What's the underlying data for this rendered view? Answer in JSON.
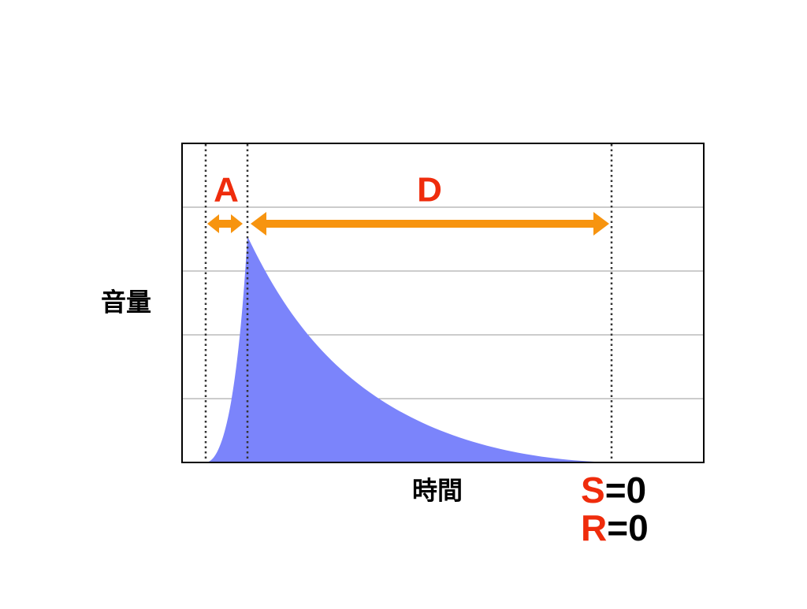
{
  "labels": {
    "attack": "A",
    "decay": "D",
    "y_axis": "音量",
    "x_axis": "時間",
    "sustain": {
      "name": "S",
      "value": "=0"
    },
    "release": {
      "name": "R",
      "value": "=0"
    }
  }
}
